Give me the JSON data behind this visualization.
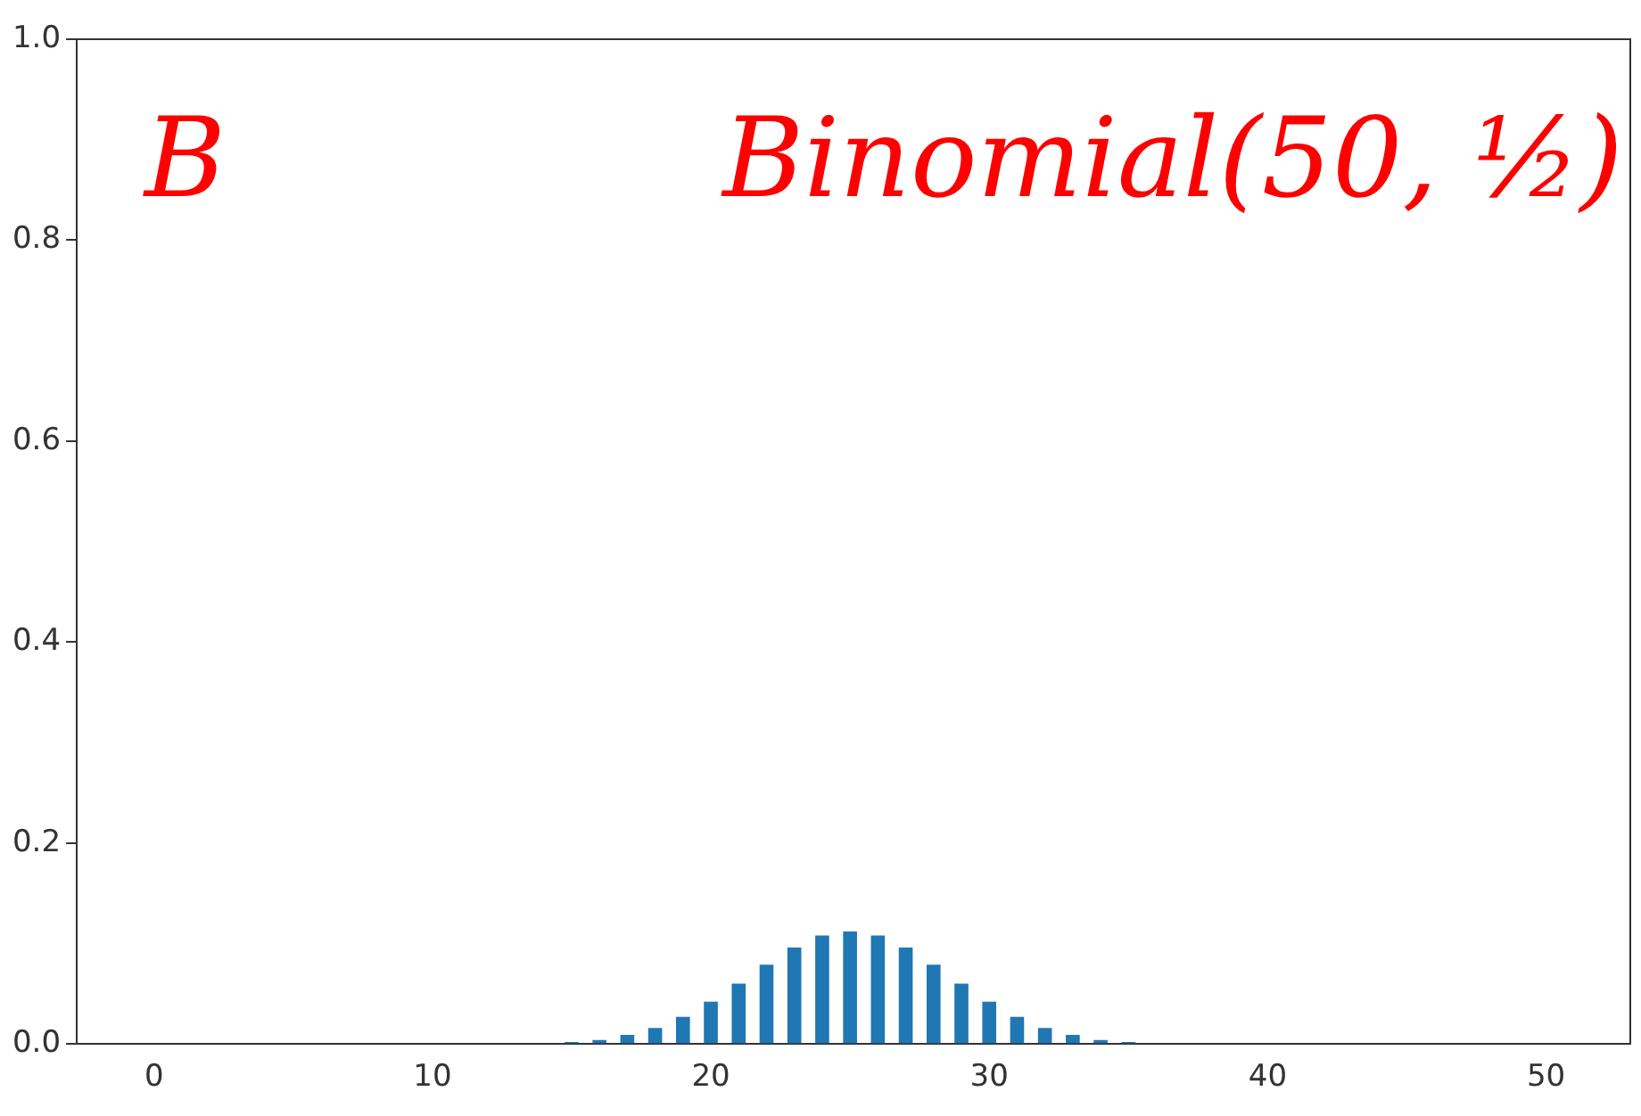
{
  "chart_data": {
    "type": "bar",
    "x": [
      0,
      1,
      2,
      3,
      4,
      5,
      6,
      7,
      8,
      9,
      10,
      11,
      12,
      13,
      14,
      15,
      16,
      17,
      18,
      19,
      20,
      21,
      22,
      23,
      24,
      25,
      26,
      27,
      28,
      29,
      30,
      31,
      32,
      33,
      34,
      35,
      36,
      37,
      38,
      39,
      40,
      41,
      42,
      43,
      44,
      45,
      46,
      47,
      48,
      49,
      50
    ],
    "values": [
      0,
      0,
      0,
      0,
      0,
      0,
      0,
      0,
      0,
      0,
      0,
      0,
      0,
      0,
      0,
      0.002,
      0.004,
      0.009,
      0.016,
      0.027,
      0.042,
      0.06,
      0.079,
      0.096,
      0.108,
      0.112,
      0.108,
      0.096,
      0.079,
      0.06,
      0.042,
      0.027,
      0.016,
      0.009,
      0.004,
      0.002,
      0,
      0,
      0,
      0,
      0,
      0,
      0,
      0,
      0,
      0,
      0,
      0,
      0,
      0,
      0
    ],
    "color": "#1f77b4",
    "xlim": [
      -2.775,
      53.025
    ],
    "xticks": [
      0,
      10,
      20,
      30,
      40,
      50
    ],
    "ylim": [
      0,
      1
    ],
    "yticks": [
      {
        "value": 0,
        "label": "0.0"
      },
      {
        "value": 0.2,
        "label": "0.2"
      },
      {
        "value": 0.4,
        "label": "0.4"
      },
      {
        "value": 0.6,
        "label": "0.6"
      },
      {
        "value": 0.8,
        "label": "0.8"
      },
      {
        "value": 1,
        "label": "1.0"
      }
    ],
    "grid": false,
    "legend": false,
    "annotations": [
      "B",
      "Binomial(50, ½)"
    ]
  }
}
